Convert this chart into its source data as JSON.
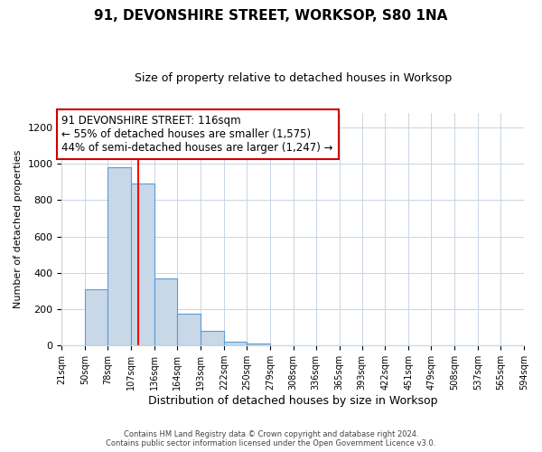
{
  "title": "91, DEVONSHIRE STREET, WORKSOP, S80 1NA",
  "subtitle": "Size of property relative to detached houses in Worksop",
  "xlabel": "Distribution of detached houses by size in Worksop",
  "ylabel": "Number of detached properties",
  "bar_edges": [
    21,
    50,
    78,
    107,
    136,
    164,
    193,
    222,
    250,
    279,
    308,
    336,
    365,
    393,
    422,
    451,
    479,
    508,
    537,
    565,
    594
  ],
  "bar_heights": [
    0,
    310,
    980,
    890,
    370,
    175,
    80,
    20,
    10,
    0,
    0,
    0,
    0,
    0,
    0,
    0,
    0,
    0,
    0,
    0
  ],
  "bar_color": "#c8d8e8",
  "bar_edge_color": "#5b9bd5",
  "red_line_x": 116,
  "ylim": [
    0,
    1280
  ],
  "yticks": [
    0,
    200,
    400,
    600,
    800,
    1000,
    1200
  ],
  "annotation_title": "91 DEVONSHIRE STREET: 116sqm",
  "annotation_line1": "← 55% of detached houses are smaller (1,575)",
  "annotation_line2": "44% of semi-detached houses are larger (1,247) →",
  "annotation_box_color": "#ffffff",
  "annotation_box_edge_color": "#cc0000",
  "footer_line1": "Contains HM Land Registry data © Crown copyright and database right 2024.",
  "footer_line2": "Contains public sector information licensed under the Open Government Licence v3.0.",
  "tick_labels": [
    "21sqm",
    "50sqm",
    "78sqm",
    "107sqm",
    "136sqm",
    "164sqm",
    "193sqm",
    "222sqm",
    "250sqm",
    "279sqm",
    "308sqm",
    "336sqm",
    "365sqm",
    "393sqm",
    "422sqm",
    "451sqm",
    "479sqm",
    "508sqm",
    "537sqm",
    "565sqm",
    "594sqm"
  ],
  "background_color": "#ffffff",
  "grid_color": "#c8d5e3",
  "title_fontsize": 11,
  "subtitle_fontsize": 9,
  "ylabel_fontsize": 8,
  "xlabel_fontsize": 9,
  "tick_fontsize": 7,
  "footer_fontsize": 6,
  "annotation_fontsize": 8.5
}
